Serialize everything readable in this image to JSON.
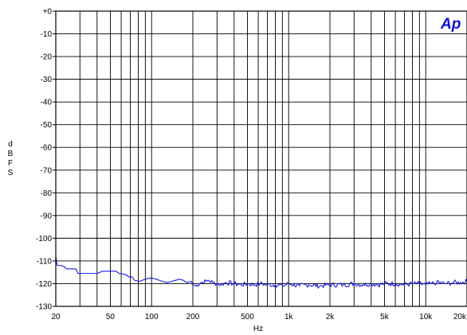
{
  "chart_data": {
    "type": "line",
    "logo_text": "Ap",
    "xlabel": "Hz",
    "ylabel_letters": [
      "d",
      "B",
      "F",
      "S"
    ],
    "x_scale": "log",
    "xlim": [
      20,
      20000
    ],
    "ylim": [
      -130,
      0
    ],
    "grid": true,
    "x_ticks": [
      {
        "value": 20,
        "label": "20"
      },
      {
        "value": 50,
        "label": "50"
      },
      {
        "value": 100,
        "label": "100"
      },
      {
        "value": 200,
        "label": "200"
      },
      {
        "value": 500,
        "label": "500"
      },
      {
        "value": 1000,
        "label": "1k"
      },
      {
        "value": 2000,
        "label": "2k"
      },
      {
        "value": 5000,
        "label": "5k"
      },
      {
        "value": 10000,
        "label": "10k"
      },
      {
        "value": 20000,
        "label": "20k"
      }
    ],
    "x_minor_grid": [
      30,
      40,
      60,
      70,
      80,
      90,
      300,
      400,
      600,
      700,
      800,
      900,
      3000,
      4000,
      6000,
      7000,
      8000,
      9000
    ],
    "y_ticks": [
      {
        "value": 0,
        "label": "+0"
      },
      {
        "value": -10,
        "label": "-10"
      },
      {
        "value": -20,
        "label": "-20"
      },
      {
        "value": -30,
        "label": "-30"
      },
      {
        "value": -40,
        "label": "-40"
      },
      {
        "value": -50,
        "label": "-50"
      },
      {
        "value": -60,
        "label": "-60"
      },
      {
        "value": -70,
        "label": "-70"
      },
      {
        "value": -80,
        "label": "-80"
      },
      {
        "value": -90,
        "label": "-90"
      },
      {
        "value": -100,
        "label": "-100"
      },
      {
        "value": -110,
        "label": "-110"
      },
      {
        "value": -120,
        "label": "-120"
      },
      {
        "value": -130,
        "label": "-130"
      }
    ],
    "series": [
      {
        "color": "#1a1ae0",
        "points": [
          [
            20,
            -108
          ],
          [
            20.5,
            -112
          ],
          [
            21,
            -112
          ],
          [
            22,
            -112
          ],
          [
            23,
            -112.5
          ],
          [
            24,
            -113.5
          ],
          [
            28,
            -113.5
          ],
          [
            29,
            -115.5
          ],
          [
            40,
            -115.5
          ],
          [
            42,
            -115
          ],
          [
            44,
            -114.5
          ],
          [
            55,
            -114.5
          ],
          [
            58,
            -115.5
          ],
          [
            65,
            -116
          ],
          [
            68,
            -117
          ],
          [
            72,
            -117
          ],
          [
            75,
            -118.5
          ],
          [
            82,
            -119
          ],
          [
            90,
            -118
          ],
          [
            100,
            -117.5
          ],
          [
            108,
            -118
          ],
          [
            120,
            -119
          ],
          [
            130,
            -119.5
          ],
          [
            140,
            -119
          ],
          [
            150,
            -118.5
          ],
          [
            160,
            -118
          ],
          [
            170,
            -118.5
          ],
          [
            180,
            -119.5
          ],
          [
            195,
            -119
          ],
          [
            200,
            -120.5
          ],
          [
            210,
            -121
          ],
          [
            230,
            -119.5
          ],
          [
            250,
            -119
          ],
          [
            260,
            -118.5
          ],
          [
            280,
            -119.5
          ],
          [
            300,
            -120
          ],
          [
            320,
            -120.5
          ],
          [
            350,
            -119.5
          ],
          [
            400,
            -120
          ],
          [
            450,
            -120.5
          ],
          [
            500,
            -120
          ],
          [
            560,
            -120.5
          ],
          [
            620,
            -120
          ],
          [
            700,
            -120.5
          ],
          [
            800,
            -120.5
          ],
          [
            900,
            -121
          ],
          [
            1000,
            -120
          ],
          [
            1200,
            -121
          ],
          [
            1400,
            -120.5
          ],
          [
            1700,
            -121
          ],
          [
            2000,
            -120.5
          ],
          [
            2500,
            -120.5
          ],
          [
            3000,
            -120
          ],
          [
            3500,
            -120.5
          ],
          [
            4000,
            -120
          ],
          [
            4500,
            -120.5
          ],
          [
            5000,
            -120
          ],
          [
            6000,
            -120
          ],
          [
            7000,
            -120.5
          ],
          [
            8000,
            -120
          ],
          [
            9000,
            -120
          ],
          [
            10000,
            -120.5
          ],
          [
            11000,
            -120
          ],
          [
            12000,
            -119.5
          ],
          [
            14000,
            -120
          ],
          [
            16000,
            -119.5
          ],
          [
            18000,
            -119.5
          ],
          [
            20000,
            -119
          ]
        ]
      }
    ]
  }
}
